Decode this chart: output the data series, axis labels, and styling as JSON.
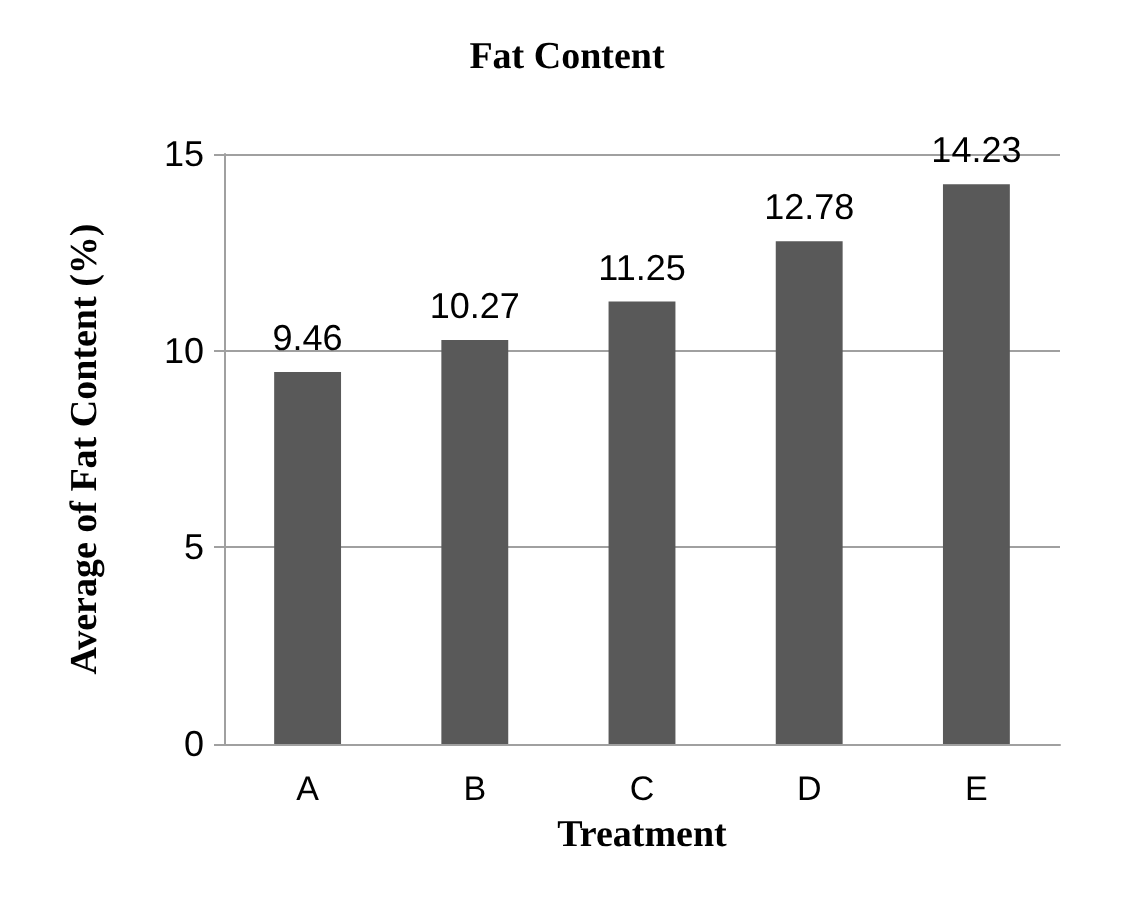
{
  "chart_data": {
    "type": "bar",
    "title": "Fat Content",
    "xlabel": "Treatment",
    "ylabel": "Average of Fat Content (%)",
    "categories": [
      "A",
      "B",
      "C",
      "D",
      "E"
    ],
    "values": [
      9.46,
      10.27,
      11.25,
      12.78,
      14.23
    ],
    "color": "#595959",
    "ylim": [
      0,
      15
    ],
    "yticks": [
      0,
      5,
      10,
      15
    ],
    "grid": "y",
    "data_labels": true
  }
}
